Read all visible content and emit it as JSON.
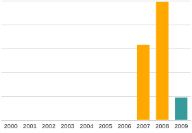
{
  "chart_data": {
    "type": "bar",
    "categories": [
      "2000",
      "2001",
      "2002",
      "2003",
      "2004",
      "2005",
      "2006",
      "2007",
      "2008",
      "2009"
    ],
    "values": [
      0,
      0,
      0,
      0,
      0,
      0,
      0,
      3.15,
      4.95,
      0.95
    ],
    "colors": [
      "#ffa800",
      "#ffa800",
      "#ffa800",
      "#ffa800",
      "#ffa800",
      "#ffa800",
      "#ffa800",
      "#ffa800",
      "#ffa800",
      "#379a9b"
    ],
    "ylim": [
      0,
      5
    ],
    "yticks": [
      0,
      1,
      2,
      3,
      4,
      5
    ],
    "grid": true,
    "tick_labels": "x"
  }
}
